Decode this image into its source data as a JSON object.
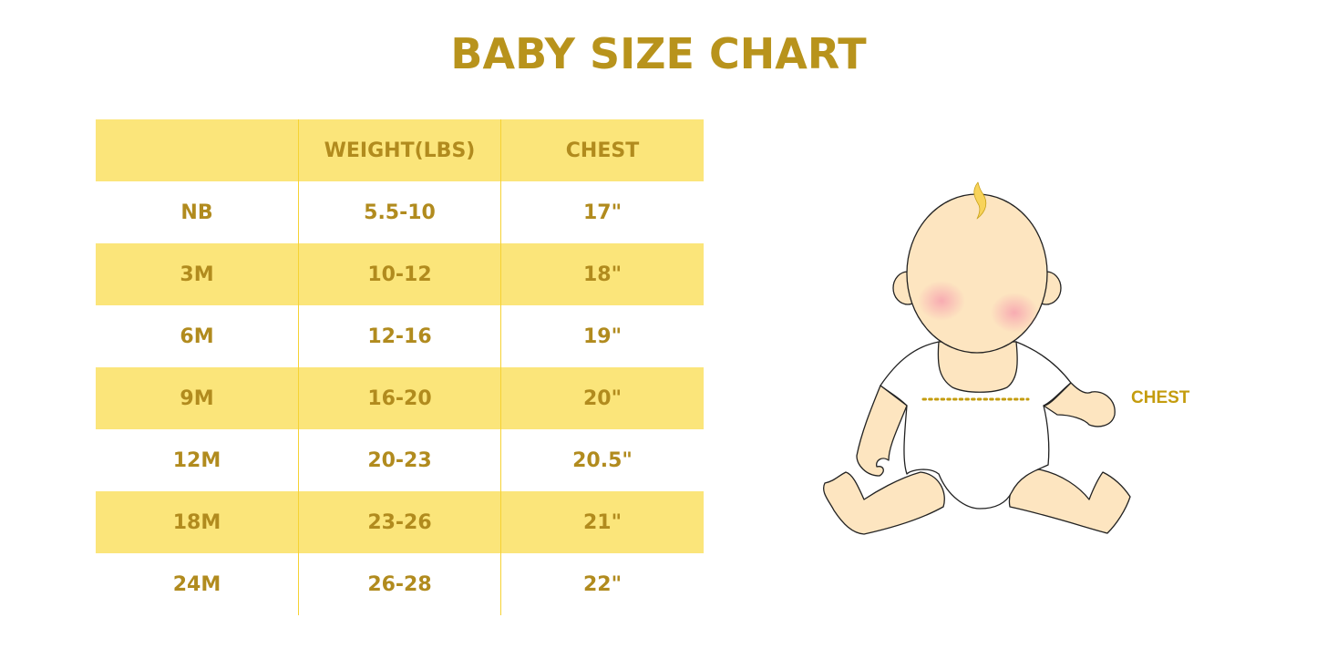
{
  "title": "BABY SIZE CHART",
  "table": {
    "headers": [
      "",
      "WEIGHT(LBS)",
      "CHEST"
    ],
    "rows": [
      [
        "NB",
        "5.5-10",
        "17\""
      ],
      [
        "3M",
        "10-12",
        "18\""
      ],
      [
        "6M",
        "12-16",
        "19\""
      ],
      [
        "9M",
        "16-20",
        "20\""
      ],
      [
        "12M",
        "20-23",
        "20.5\""
      ],
      [
        "18M",
        "23-26",
        "21\""
      ],
      [
        "24M",
        "26-28",
        "22\""
      ]
    ]
  },
  "illustration": {
    "chest_label": "CHEST"
  },
  "colors": {
    "accent_text": "#b8931c",
    "row_highlight": "#fbe57a",
    "divider": "#f6d233",
    "skin": "#fde5c0"
  }
}
